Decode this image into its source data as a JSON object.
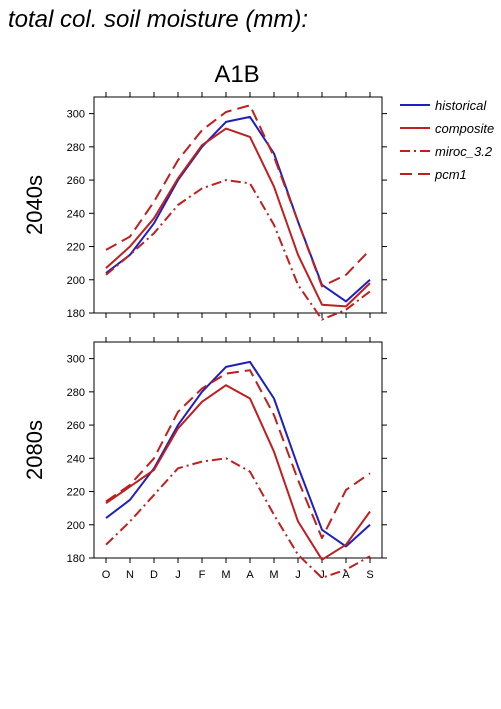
{
  "page_title": "total col. soil moisture (mm):",
  "colors": {
    "historical": "#1f1fbf",
    "scenario": "#bf1f1f",
    "axis": "#000000"
  },
  "chart_data": {
    "type": "line",
    "title": "A1B",
    "months": [
      "O",
      "N",
      "D",
      "J",
      "F",
      "M",
      "A",
      "M",
      "J",
      "J",
      "A",
      "S"
    ],
    "ylim": [
      180,
      310
    ],
    "yticks": [
      180,
      200,
      220,
      240,
      260,
      280,
      300
    ],
    "grid": false,
    "legend_position": "right",
    "legend": [
      {
        "name": "historical",
        "color": "#1f1fbf",
        "style": "solid"
      },
      {
        "name": "composite",
        "color": "#bf1f1f",
        "style": "solid"
      },
      {
        "name": "miroc_3.2",
        "color": "#bf1f1f",
        "style": "dashdot"
      },
      {
        "name": "pcm1",
        "color": "#bf1f1f",
        "style": "dashed"
      }
    ],
    "panels": [
      {
        "label": "2040s",
        "series": [
          {
            "name": "historical",
            "values": [
              204,
              215,
              234,
              260,
              280,
              295,
              298,
              276,
              235,
              197,
              187,
              200
            ]
          },
          {
            "name": "composite",
            "values": [
              207,
              220,
              237,
              261,
              281,
              291,
              286,
              256,
              215,
              185,
              184,
              198
            ]
          },
          {
            "name": "miroc_3.2",
            "values": [
              203,
              215,
              228,
              245,
              255,
              260,
              258,
              233,
              197,
              176,
              182,
              193
            ]
          },
          {
            "name": "pcm1",
            "values": [
              218,
              226,
              247,
              272,
              290,
              301,
              305,
              274,
              235,
              196,
              203,
              218
            ]
          }
        ]
      },
      {
        "label": "2080s",
        "series": [
          {
            "name": "historical",
            "values": [
              204,
              215,
              234,
              260,
              280,
              295,
              298,
              276,
              235,
              197,
              187,
              200
            ]
          },
          {
            "name": "composite",
            "values": [
              213,
              223,
              233,
              258,
              274,
              284,
              276,
              244,
              202,
              179,
              188,
              208
            ]
          },
          {
            "name": "miroc_3.2",
            "values": [
              188,
              202,
              218,
              234,
              238,
              240,
              232,
              206,
              182,
              168,
              173,
              181
            ]
          },
          {
            "name": "pcm1",
            "values": [
              214,
              224,
              240,
              268,
              282,
              291,
              293,
              266,
              227,
              192,
              221,
              231
            ]
          }
        ]
      }
    ]
  }
}
